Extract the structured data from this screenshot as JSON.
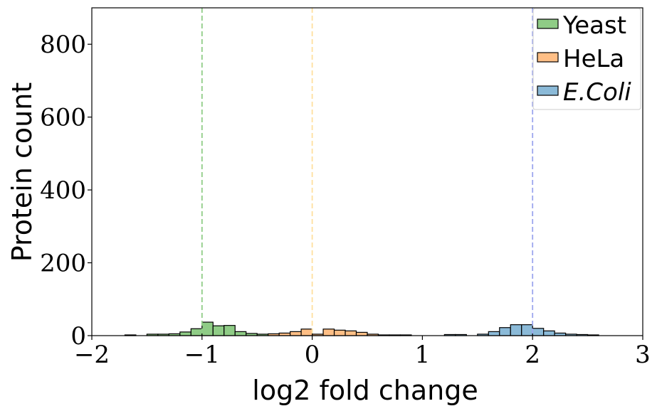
{
  "chart_data": {
    "type": "histogram",
    "xlabel": "log2 fold change",
    "ylabel": "Protein count",
    "xlim": [
      -2,
      3
    ],
    "ylim": [
      0,
      900
    ],
    "xticks": [
      -2,
      -1,
      0,
      1,
      2,
      3
    ],
    "xtick_labels": [
      "−2",
      "−1",
      "0",
      "1",
      "2",
      "3"
    ],
    "yticks": [
      0,
      200,
      400,
      600,
      800
    ],
    "ytick_labels": [
      "0",
      "200",
      "400",
      "600",
      "800"
    ],
    "grid": false,
    "legend_position": "top-right",
    "bin_width": 0.1,
    "series": [
      {
        "name": "Yeast",
        "italic": false,
        "color": "#8fcc86",
        "line": -1,
        "line_color": "#8fcc86",
        "bins": [
          {
            "x": -1.7,
            "count": 2
          },
          {
            "x": -1.5,
            "count": 4
          },
          {
            "x": -1.4,
            "count": 4
          },
          {
            "x": -1.3,
            "count": 5
          },
          {
            "x": -1.2,
            "count": 10
          },
          {
            "x": -1.1,
            "count": 19
          },
          {
            "x": -1.0,
            "count": 37
          },
          {
            "x": -0.9,
            "count": 27
          },
          {
            "x": -0.8,
            "count": 28
          },
          {
            "x": -0.7,
            "count": 11
          },
          {
            "x": -0.6,
            "count": 6
          },
          {
            "x": -0.5,
            "count": 4
          }
        ]
      },
      {
        "name": "HeLa",
        "italic": false,
        "color": "#ffbf86",
        "line": 0,
        "line_color": "#ffdf9e",
        "bins": [
          {
            "x": -0.4,
            "count": 5
          },
          {
            "x": -0.3,
            "count": 7
          },
          {
            "x": -0.2,
            "count": 11
          },
          {
            "x": -0.1,
            "count": 18
          },
          {
            "x": 0.0,
            "count": 4
          },
          {
            "x": 0.1,
            "count": 18
          },
          {
            "x": 0.2,
            "count": 15
          },
          {
            "x": 0.3,
            "count": 13
          },
          {
            "x": 0.4,
            "count": 9
          },
          {
            "x": 0.5,
            "count": 4
          },
          {
            "x": 0.6,
            "count": 2
          },
          {
            "x": 0.7,
            "count": 2
          },
          {
            "x": 0.8,
            "count": 2
          }
        ]
      },
      {
        "name": "E.Coli",
        "italic": true,
        "color": "#8bbad8",
        "line": 2,
        "line_color": "#9ca6ee",
        "bins": [
          {
            "x": 1.2,
            "count": 3
          },
          {
            "x": 1.3,
            "count": 3
          },
          {
            "x": 1.5,
            "count": 4
          },
          {
            "x": 1.6,
            "count": 11
          },
          {
            "x": 1.7,
            "count": 22
          },
          {
            "x": 1.8,
            "count": 30
          },
          {
            "x": 1.9,
            "count": 30
          },
          {
            "x": 2.0,
            "count": 20
          },
          {
            "x": 2.1,
            "count": 13
          },
          {
            "x": 2.2,
            "count": 7
          },
          {
            "x": 2.3,
            "count": 4
          },
          {
            "x": 2.4,
            "count": 3
          },
          {
            "x": 2.5,
            "count": 2
          }
        ]
      }
    ]
  }
}
